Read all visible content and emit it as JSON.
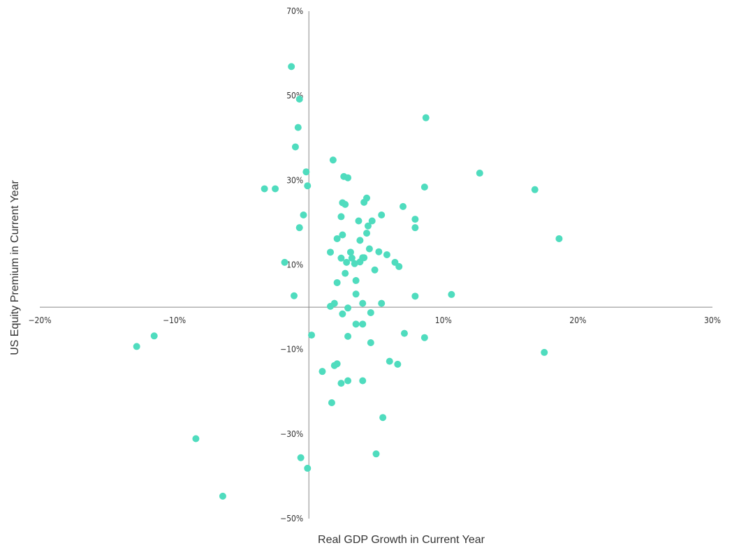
{
  "chart_data": {
    "type": "scatter",
    "title": "",
    "xlabel": "Real GDP Growth in Current Year",
    "ylabel": "US Equity Premium in Current Year",
    "xlim": [
      -20,
      30
    ],
    "ylim": [
      -50,
      70
    ],
    "x_ticks": [
      -20,
      -10,
      10,
      20,
      30
    ],
    "y_ticks": [
      -50,
      -30,
      -10,
      10,
      30,
      50,
      70
    ],
    "x_tick_labels": [
      "−20%",
      "−10%",
      "10%",
      "20%",
      "30%"
    ],
    "y_tick_labels": [
      "−50%",
      "−30%",
      "−10%",
      "10%",
      "30%",
      "50%",
      "70%"
    ],
    "grid": false,
    "legend": "none",
    "color": "#4fdcbe",
    "points": [
      {
        "x": -1.3,
        "y": 56.9
      },
      {
        "x": -0.7,
        "y": 49.2
      },
      {
        "x": -0.8,
        "y": 42.5
      },
      {
        "x": -1.0,
        "y": 37.9
      },
      {
        "x": -0.2,
        "y": 32.0
      },
      {
        "x": -0.1,
        "y": 28.7
      },
      {
        "x": -3.3,
        "y": 28.0
      },
      {
        "x": -2.5,
        "y": 28.0
      },
      {
        "x": -0.4,
        "y": 21.8
      },
      {
        "x": -0.7,
        "y": 18.8
      },
      {
        "x": -1.8,
        "y": 10.6
      },
      {
        "x": -1.1,
        "y": 2.7
      },
      {
        "x": 8.7,
        "y": 44.8
      },
      {
        "x": 12.7,
        "y": 31.7
      },
      {
        "x": 16.8,
        "y": 27.8
      },
      {
        "x": 18.6,
        "y": 16.2
      },
      {
        "x": 17.5,
        "y": -10.7
      },
      {
        "x": 8.6,
        "y": 28.4
      },
      {
        "x": 7.0,
        "y": 23.8
      },
      {
        "x": 7.9,
        "y": 20.8
      },
      {
        "x": 7.9,
        "y": 18.8
      },
      {
        "x": 10.6,
        "y": 3.0
      },
      {
        "x": 7.9,
        "y": 2.6
      },
      {
        "x": 8.6,
        "y": -7.2
      },
      {
        "x": 7.1,
        "y": -6.2
      },
      {
        "x": 6.6,
        "y": -13.5
      },
      {
        "x": 6.0,
        "y": -12.8
      },
      {
        "x": 5.5,
        "y": -26.1
      },
      {
        "x": 5.0,
        "y": -34.7
      },
      {
        "x": 1.8,
        "y": 34.8
      },
      {
        "x": 2.6,
        "y": 30.9
      },
      {
        "x": 2.9,
        "y": 30.6
      },
      {
        "x": 2.5,
        "y": 24.7
      },
      {
        "x": 2.7,
        "y": 24.3
      },
      {
        "x": 4.3,
        "y": 25.8
      },
      {
        "x": 4.1,
        "y": 24.8
      },
      {
        "x": 5.4,
        "y": 21.8
      },
      {
        "x": 4.7,
        "y": 20.4
      },
      {
        "x": 3.7,
        "y": 20.4
      },
      {
        "x": 2.4,
        "y": 21.4
      },
      {
        "x": 4.4,
        "y": 19.2
      },
      {
        "x": 4.3,
        "y": 17.5
      },
      {
        "x": 2.5,
        "y": 17.1
      },
      {
        "x": 2.1,
        "y": 16.2
      },
      {
        "x": 3.8,
        "y": 15.8
      },
      {
        "x": 1.6,
        "y": 13.0
      },
      {
        "x": 3.1,
        "y": 13.0
      },
      {
        "x": 4.5,
        "y": 13.8
      },
      {
        "x": 5.2,
        "y": 13.1
      },
      {
        "x": 5.8,
        "y": 12.4
      },
      {
        "x": 2.4,
        "y": 11.6
      },
      {
        "x": 3.2,
        "y": 11.6
      },
      {
        "x": 4.0,
        "y": 11.7
      },
      {
        "x": 4.1,
        "y": 11.7
      },
      {
        "x": 2.8,
        "y": 10.6
      },
      {
        "x": 3.4,
        "y": 10.3
      },
      {
        "x": 3.8,
        "y": 10.7
      },
      {
        "x": 6.4,
        "y": 10.6
      },
      {
        "x": 6.7,
        "y": 9.6
      },
      {
        "x": 4.9,
        "y": 8.8
      },
      {
        "x": 2.7,
        "y": 8.0
      },
      {
        "x": 2.1,
        "y": 5.8
      },
      {
        "x": 3.5,
        "y": 6.3
      },
      {
        "x": 3.5,
        "y": 3.1
      },
      {
        "x": 1.9,
        "y": 0.9
      },
      {
        "x": 1.6,
        "y": 0.2
      },
      {
        "x": 4.0,
        "y": 0.9
      },
      {
        "x": 5.4,
        "y": 0.9
      },
      {
        "x": 2.9,
        "y": -0.2
      },
      {
        "x": 4.6,
        "y": -1.3
      },
      {
        "x": 2.5,
        "y": -1.6
      },
      {
        "x": 3.5,
        "y": -4.0
      },
      {
        "x": 4.0,
        "y": -4.0
      },
      {
        "x": 0.2,
        "y": -6.6
      },
      {
        "x": 2.9,
        "y": -6.9
      },
      {
        "x": 4.6,
        "y": -8.4
      },
      {
        "x": 2.1,
        "y": -13.4
      },
      {
        "x": 1.9,
        "y": -13.8
      },
      {
        "x": 1.0,
        "y": -15.2
      },
      {
        "x": 2.9,
        "y": -17.4
      },
      {
        "x": 2.4,
        "y": -18.0
      },
      {
        "x": 4.0,
        "y": -17.4
      },
      {
        "x": 1.7,
        "y": -22.6
      },
      {
        "x": -12.8,
        "y": -9.3
      },
      {
        "x": -11.5,
        "y": -6.8
      },
      {
        "x": -8.4,
        "y": -31.1
      },
      {
        "x": -6.4,
        "y": -44.7
      },
      {
        "x": -0.6,
        "y": -35.6
      },
      {
        "x": -0.1,
        "y": -38.1
      }
    ]
  }
}
